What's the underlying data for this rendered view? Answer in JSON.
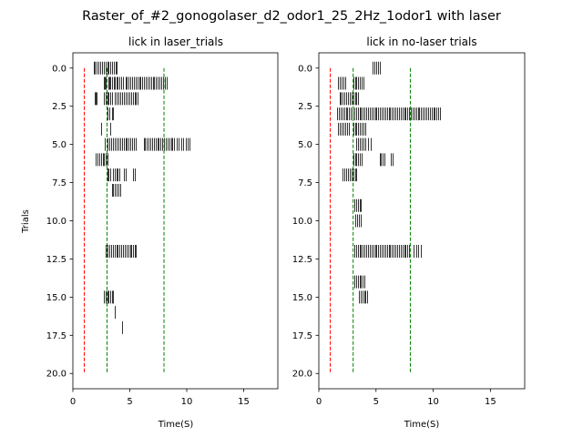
{
  "figure": {
    "suptitle": "Raster_of_#2_gonogolaser_d2_odor1_25_2Hz_1odor1 with laser"
  },
  "chart_data": [
    {
      "type": "scatter",
      "title": "lick in laser_trials",
      "xlabel": "Time(S)",
      "ylabel": "Trials",
      "xlim": [
        0,
        18
      ],
      "ylim": [
        21,
        -1
      ],
      "xticks": [
        "0",
        "5",
        "10",
        "15"
      ],
      "xtick_values": [
        0,
        5,
        10,
        15
      ],
      "yticks": [
        "0.0",
        "2.5",
        "5.0",
        "7.5",
        "10.0",
        "12.5",
        "15.0",
        "17.5",
        "20.0"
      ],
      "ytick_values": [
        0,
        2.5,
        5,
        7.5,
        10,
        12.5,
        15,
        17.5,
        20
      ],
      "mark_style": "vertical tick per lick",
      "mark_color": "#000000",
      "event_lines": [
        {
          "x": 1.0,
          "color": "#ff0000",
          "style": "dashed"
        },
        {
          "x": 3.0,
          "color": "#008000",
          "style": "dashed"
        },
        {
          "x": 8.0,
          "color": "#008000",
          "style": "dashed"
        }
      ],
      "trials": [
        {
          "trial": 0,
          "licks": [
            1.8,
            1.95,
            2.1,
            2.25,
            2.4,
            2.55,
            2.7,
            2.85,
            3.0,
            3.15,
            3.3,
            3.45,
            3.6,
            3.75,
            3.85
          ]
        },
        {
          "trial": 1,
          "licks": [
            2.7,
            2.8,
            2.9,
            3.1,
            3.2,
            3.3,
            3.45,
            3.6,
            3.7,
            3.8,
            3.9,
            4.1,
            4.25,
            4.4,
            4.6,
            4.75,
            4.9,
            5.05,
            5.2,
            5.35,
            5.5,
            5.65,
            5.8,
            5.95,
            6.1,
            6.25,
            6.4,
            6.55,
            6.7,
            6.85,
            7.0,
            7.15,
            7.3,
            7.45,
            7.6,
            7.75,
            7.9,
            8.05,
            8.2
          ]
        },
        {
          "trial": 2,
          "licks": [
            1.9,
            2.0,
            2.1,
            2.7,
            2.85,
            3.0,
            3.15,
            3.3,
            3.45,
            3.65,
            3.8,
            4.0,
            4.15,
            4.3,
            4.5,
            4.65,
            4.8,
            4.95,
            5.1,
            5.25,
            5.4,
            5.55,
            5.7
          ]
        },
        {
          "trial": 3,
          "licks": [
            3.0,
            3.2,
            3.4,
            3.55
          ]
        },
        {
          "trial": 4,
          "licks": [
            2.5,
            3.3
          ]
        },
        {
          "trial": 5,
          "licks": [
            2.8,
            3.0,
            3.2,
            3.35,
            3.5,
            3.7,
            3.85,
            4.0,
            4.15,
            4.3,
            4.45,
            4.6,
            4.75,
            4.9,
            5.05,
            5.2,
            5.35,
            5.5,
            6.2,
            6.35,
            6.5,
            6.65,
            6.8,
            6.95,
            7.1,
            7.25,
            7.4,
            7.55,
            7.7,
            7.85,
            8.0,
            8.15,
            8.3,
            8.45,
            8.6,
            8.75,
            8.9,
            9.1,
            9.3,
            9.5,
            9.7,
            9.9,
            10.1,
            10.25
          ]
        },
        {
          "trial": 6,
          "licks": [
            2.0,
            2.15,
            2.3,
            2.45,
            2.6,
            2.75,
            2.9,
            3.0
          ]
        },
        {
          "trial": 7,
          "licks": [
            3.0,
            3.15,
            3.3,
            3.5,
            3.65,
            3.8,
            3.95,
            4.1,
            4.5,
            4.65,
            5.3,
            5.45
          ]
        },
        {
          "trial": 8,
          "licks": [
            3.4,
            3.55,
            3.7,
            3.85,
            4.0,
            4.15
          ]
        },
        {
          "trial": 12,
          "licks": [
            2.9,
            3.05,
            3.2,
            3.35,
            3.5,
            3.65,
            3.8,
            3.95,
            4.1,
            4.25,
            4.4,
            4.55,
            4.7,
            4.85,
            5.0,
            5.15,
            5.3,
            5.45,
            5.55
          ]
        },
        {
          "trial": 15,
          "licks": [
            2.7,
            2.85,
            3.0,
            3.15,
            3.3,
            3.45,
            3.55
          ]
        },
        {
          "trial": 16,
          "licks": [
            3.7
          ]
        },
        {
          "trial": 17,
          "licks": [
            4.3
          ]
        }
      ]
    },
    {
      "type": "scatter",
      "title": "lick in no-laser trials",
      "xlabel": "Time(S)",
      "ylabel": "",
      "xlim": [
        0,
        18
      ],
      "ylim": [
        21,
        -1
      ],
      "xticks": [
        "0",
        "5",
        "10",
        "15"
      ],
      "xtick_values": [
        0,
        5,
        10,
        15
      ],
      "yticks": [
        "0.0",
        "2.5",
        "5.0",
        "7.5",
        "10.0",
        "12.5",
        "15.0",
        "17.5",
        "20.0"
      ],
      "ytick_values": [
        0,
        2.5,
        5,
        7.5,
        10,
        12.5,
        15,
        17.5,
        20
      ],
      "mark_style": "vertical tick per lick",
      "mark_color": "#000000",
      "event_lines": [
        {
          "x": 1.0,
          "color": "#ff0000",
          "style": "dashed"
        },
        {
          "x": 3.0,
          "color": "#008000",
          "style": "dashed"
        },
        {
          "x": 8.0,
          "color": "#008000",
          "style": "dashed"
        }
      ],
      "trials": [
        {
          "trial": 0,
          "licks": [
            4.7,
            4.85,
            5.0,
            5.15,
            5.3
          ]
        },
        {
          "trial": 1,
          "licks": [
            1.7,
            1.85,
            2.0,
            2.15,
            2.3,
            3.0,
            3.15,
            3.3,
            3.45,
            3.6,
            3.75,
            3.9
          ]
        },
        {
          "trial": 2,
          "licks": [
            1.8,
            1.95,
            2.1,
            2.25,
            2.4,
            2.55,
            2.7,
            2.85,
            3.0,
            3.15,
            3.3,
            3.45
          ]
        },
        {
          "trial": 3,
          "licks": [
            1.6,
            1.75,
            1.9,
            2.05,
            2.2,
            2.35,
            2.5,
            2.65,
            2.8,
            2.95,
            3.1,
            3.25,
            3.4,
            3.55,
            3.7,
            3.85,
            4.0,
            4.15,
            4.3,
            4.45,
            4.6,
            4.75,
            4.9,
            5.05,
            5.2,
            5.35,
            5.5,
            5.65,
            5.8,
            5.95,
            6.1,
            6.25,
            6.4,
            6.55,
            6.7,
            6.85,
            7.0,
            7.15,
            7.3,
            7.45,
            7.6,
            7.75,
            7.9,
            8.05,
            8.2,
            8.35,
            8.5,
            8.65,
            8.8,
            8.95,
            9.1,
            9.25,
            9.4,
            9.55,
            9.7,
            9.85,
            10.0,
            10.15,
            10.3,
            10.45,
            10.6
          ]
        },
        {
          "trial": 4,
          "licks": [
            1.7,
            1.85,
            2.0,
            2.15,
            2.3,
            2.45,
            2.6,
            3.0,
            3.15,
            3.3,
            3.45,
            3.6,
            3.75,
            3.9,
            4.05
          ]
        },
        {
          "trial": 5,
          "licks": [
            3.3,
            3.45,
            3.6,
            3.75,
            3.9,
            4.1,
            4.3,
            4.5
          ]
        },
        {
          "trial": 6,
          "licks": [
            3.0,
            3.15,
            3.3,
            3.45,
            3.6,
            3.75,
            5.3,
            5.45,
            5.6,
            5.75,
            6.3,
            6.45
          ]
        },
        {
          "trial": 7,
          "licks": [
            2.1,
            2.25,
            2.4,
            2.55,
            2.7,
            2.85,
            3.0,
            3.15,
            3.3
          ]
        },
        {
          "trial": 9,
          "licks": [
            3.1,
            3.25,
            3.4,
            3.55,
            3.7
          ]
        },
        {
          "trial": 10,
          "licks": [
            3.2,
            3.35,
            3.5,
            3.65
          ]
        },
        {
          "trial": 12,
          "licks": [
            3.1,
            3.25,
            3.4,
            3.55,
            3.7,
            3.85,
            4.0,
            4.15,
            4.3,
            4.45,
            4.6,
            4.75,
            4.9,
            5.05,
            5.2,
            5.35,
            5.5,
            5.65,
            5.8,
            5.95,
            6.1,
            6.25,
            6.4,
            6.55,
            6.7,
            6.85,
            7.0,
            7.15,
            7.3,
            7.45,
            7.6,
            7.75,
            7.9,
            8.3,
            8.5,
            8.7,
            8.9
          ]
        },
        {
          "trial": 14,
          "licks": [
            3.1,
            3.25,
            3.4,
            3.55,
            3.7,
            3.85,
            4.0
          ]
        },
        {
          "trial": 15,
          "licks": [
            3.5,
            3.65,
            3.8,
            3.95,
            4.1,
            4.25
          ]
        }
      ]
    }
  ]
}
